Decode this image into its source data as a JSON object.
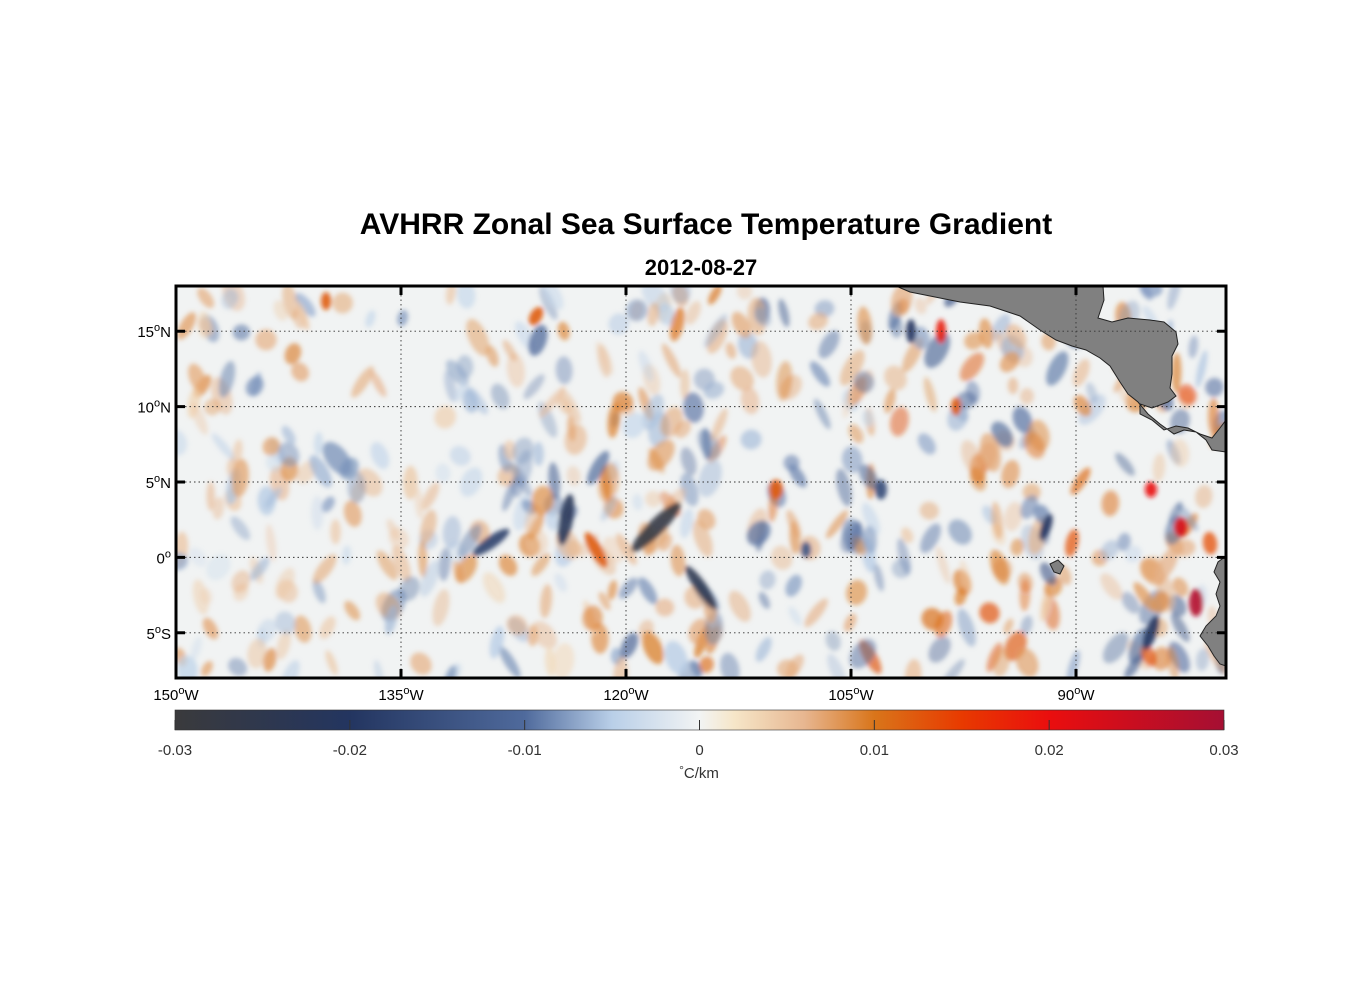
{
  "title": "AVHRR Zonal Sea Surface Temperature Gradient",
  "subtitle": "2012-08-27",
  "map": {
    "lon_range": [
      -150,
      -80
    ],
    "lat_range": [
      -8,
      18
    ],
    "lon_ticks": [
      {
        "value": -150,
        "num": "150",
        "deg": "o",
        "hemi": "W"
      },
      {
        "value": -135,
        "num": "135",
        "deg": "o",
        "hemi": "W"
      },
      {
        "value": -120,
        "num": "120",
        "deg": "o",
        "hemi": "W"
      },
      {
        "value": -105,
        "num": "105",
        "deg": "o",
        "hemi": "W"
      },
      {
        "value": -90,
        "num": "90",
        "deg": "o",
        "hemi": "W"
      }
    ],
    "lat_ticks": [
      {
        "value": 15,
        "num": "15",
        "deg": "o",
        "hemi": "N"
      },
      {
        "value": 10,
        "num": "10",
        "deg": "o",
        "hemi": "N"
      },
      {
        "value": 5,
        "num": "5",
        "deg": "o",
        "hemi": "N"
      },
      {
        "value": 0,
        "num": "0",
        "deg": "o",
        "hemi": ""
      },
      {
        "value": -5,
        "num": "5",
        "deg": "o",
        "hemi": "S"
      }
    ],
    "land_color": "#808080",
    "grid_style": "dotted"
  },
  "colorbar": {
    "range": [
      -0.03,
      0.03
    ],
    "ticks": [
      {
        "value": -0.03,
        "label": "-0.03"
      },
      {
        "value": -0.02,
        "label": "-0.02"
      },
      {
        "value": -0.01,
        "label": "-0.01"
      },
      {
        "value": 0,
        "label": "0"
      },
      {
        "value": 0.01,
        "label": "0.01"
      },
      {
        "value": 0.02,
        "label": "0.02"
      },
      {
        "value": 0.03,
        "label": "0.03"
      }
    ],
    "label_deg": "°",
    "label_unit": "C/km",
    "stops": [
      {
        "value": -0.03,
        "color": "#3a3a3c"
      },
      {
        "value": -0.02,
        "color": "#233560"
      },
      {
        "value": -0.01,
        "color": "#4f6a9c"
      },
      {
        "value": -0.005,
        "color": "#b9cfe8"
      },
      {
        "value": 0,
        "color": "#f2f4f4"
      },
      {
        "value": 0.002,
        "color": "#f6e6c8"
      },
      {
        "value": 0.006,
        "color": "#e7b690"
      },
      {
        "value": 0.01,
        "color": "#d9751a"
      },
      {
        "value": 0.015,
        "color": "#e83a00"
      },
      {
        "value": 0.02,
        "color": "#ea0e0e"
      },
      {
        "value": 0.03,
        "color": "#a50f33"
      }
    ]
  }
}
